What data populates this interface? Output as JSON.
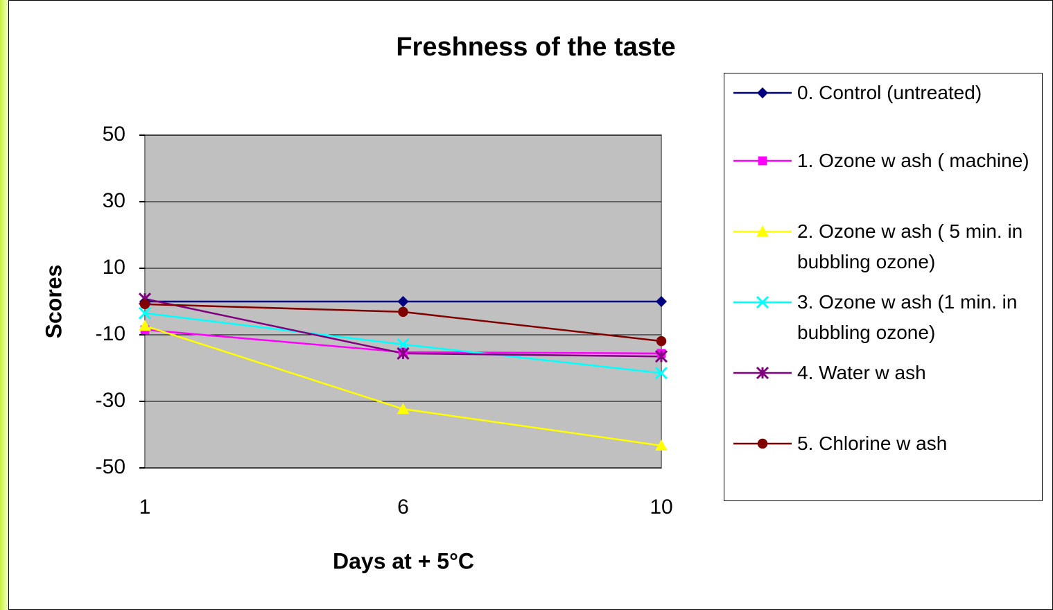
{
  "chart_data": {
    "type": "line",
    "title": "Freshness of the taste",
    "x_label": "Days at + 5°C",
    "y_label": "Scores",
    "categories": [
      "1",
      "6",
      "10"
    ],
    "ylim": [
      -50,
      50
    ],
    "yticks": [
      -50,
      -30,
      -10,
      10,
      30,
      50
    ],
    "grid": true,
    "series": [
      {
        "name": "0. Control (untreated)",
        "color": "#000080",
        "marker": "diamond",
        "values": [
          0,
          0,
          0
        ]
      },
      {
        "name": "1. Ozone w ash ( machine)",
        "color": "#ff00ff",
        "marker": "square",
        "values": [
          -8.5,
          -15.2,
          -15.6
        ]
      },
      {
        "name": "2. Ozone w ash ( 5 min. in bubbling ozone)",
        "color": "#ffff00",
        "marker": "triangle",
        "values": [
          -7.3,
          -32.3,
          -43.3
        ]
      },
      {
        "name": "3. Ozone w ash (1 min. in bubbling ozone)",
        "color": "#00ffff",
        "marker": "x",
        "values": [
          -3.5,
          -12.9,
          -21.5
        ]
      },
      {
        "name": "4. Water w ash",
        "color": "#800080",
        "marker": "star",
        "values": [
          0.8,
          -15.6,
          -16.5
        ]
      },
      {
        "name": "5. Chlorine w ash",
        "color": "#800000",
        "marker": "circle",
        "values": [
          -0.8,
          -3.1,
          -11.9
        ]
      }
    ]
  }
}
